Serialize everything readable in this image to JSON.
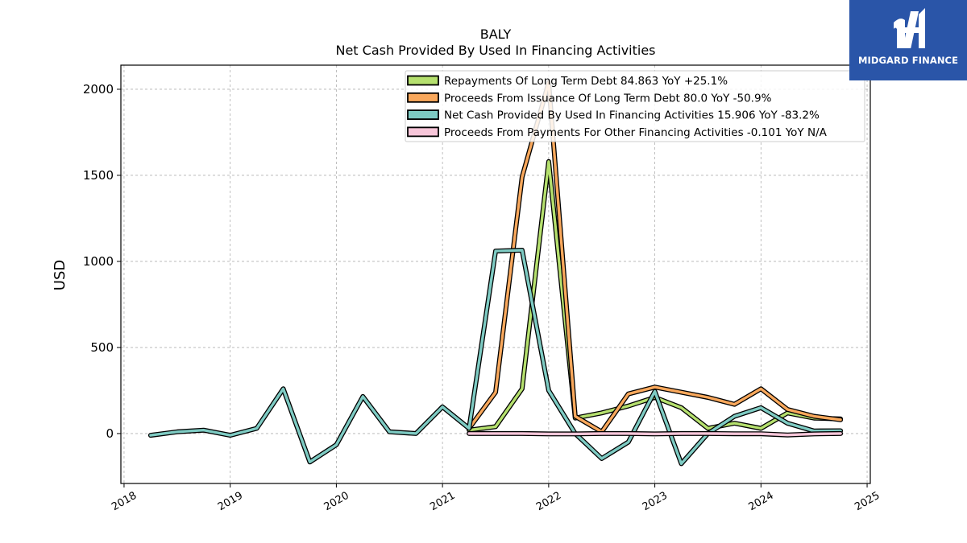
{
  "header": {
    "ticker": "BALY",
    "title": "Net Cash Provided By Used In Financing Activities"
  },
  "brand": {
    "logo_text": "MIDGARD FINANCE",
    "color": "#2a55a8"
  },
  "chart_data": {
    "type": "line",
    "ylabel": "USD",
    "xlabel": "",
    "xlim": [
      2017.97,
      2025.03
    ],
    "ylim": [
      -290,
      2140
    ],
    "xticks": [
      2018,
      2019,
      2020,
      2021,
      2022,
      2023,
      2024,
      2025
    ],
    "xtick_labels": [
      "2018",
      "2019",
      "2020",
      "2021",
      "2022",
      "2023",
      "2024",
      "2025"
    ],
    "yticks": [
      0,
      500,
      1000,
      1500,
      2000
    ],
    "ytick_labels": [
      "0",
      "500",
      "1000",
      "1500",
      "2000"
    ],
    "grid": true,
    "legend_position": "top-right",
    "series": [
      {
        "name": "Repayments Of Long Term Debt",
        "legend_label": "Repayments Of Long Term Debt  84.863 YoY +25.1%",
        "color": "#b5e06e",
        "points": [
          [
            2021.25,
            20
          ],
          [
            2021.5,
            40
          ],
          [
            2021.75,
            260
          ],
          [
            2022.0,
            1580
          ],
          [
            2022.25,
            90
          ],
          [
            2022.5,
            120
          ],
          [
            2022.75,
            160
          ],
          [
            2023.0,
            210
          ],
          [
            2023.25,
            150
          ],
          [
            2023.5,
            30
          ],
          [
            2023.75,
            60
          ],
          [
            2024.0,
            30
          ],
          [
            2024.25,
            120
          ],
          [
            2024.5,
            90
          ],
          [
            2024.75,
            85
          ]
        ]
      },
      {
        "name": "Proceeds From Issuance Of Long Term Debt",
        "legend_label": "Proceeds From Issuance Of Long Term Debt  80.0 YoY -50.9%",
        "color": "#f9a85c",
        "points": [
          [
            2021.25,
            30
          ],
          [
            2021.5,
            240
          ],
          [
            2021.75,
            1490
          ],
          [
            2022.0,
            2040
          ],
          [
            2022.25,
            100
          ],
          [
            2022.5,
            10
          ],
          [
            2022.75,
            230
          ],
          [
            2023.0,
            270
          ],
          [
            2023.25,
            240
          ],
          [
            2023.5,
            210
          ],
          [
            2023.75,
            170
          ],
          [
            2024.0,
            260
          ],
          [
            2024.25,
            140
          ],
          [
            2024.5,
            100
          ],
          [
            2024.75,
            80
          ]
        ]
      },
      {
        "name": "Net Cash Provided By Used In Financing Activities",
        "legend_label": "Net Cash Provided By Used In Financing Activities  15.906 YoY -83.2%",
        "color": "#7ecbc3",
        "points": [
          [
            2018.25,
            -10
          ],
          [
            2018.5,
            10
          ],
          [
            2018.75,
            20
          ],
          [
            2019.0,
            -10
          ],
          [
            2019.25,
            30
          ],
          [
            2019.5,
            260
          ],
          [
            2019.75,
            -165
          ],
          [
            2020.0,
            -65
          ],
          [
            2020.25,
            215
          ],
          [
            2020.5,
            10
          ],
          [
            2020.75,
            0
          ],
          [
            2021.0,
            155
          ],
          [
            2021.25,
            30
          ],
          [
            2021.5,
            1060
          ],
          [
            2021.75,
            1065
          ],
          [
            2022.0,
            250
          ],
          [
            2022.25,
            0
          ],
          [
            2022.5,
            -145
          ],
          [
            2022.75,
            -50
          ],
          [
            2023.0,
            245
          ],
          [
            2023.25,
            -175
          ],
          [
            2023.5,
            0
          ],
          [
            2023.75,
            100
          ],
          [
            2024.0,
            150
          ],
          [
            2024.25,
            60
          ],
          [
            2024.5,
            15
          ],
          [
            2024.75,
            16
          ]
        ]
      },
      {
        "name": "Proceeds From Payments For Other Financing Activities",
        "legend_label": "Proceeds From Payments For Other Financing Activities  -0.101 YoY N/A",
        "color": "#f7c6d9",
        "points": [
          [
            2021.25,
            0
          ],
          [
            2021.5,
            0
          ],
          [
            2021.75,
            0
          ],
          [
            2022.0,
            -2
          ],
          [
            2022.25,
            -2
          ],
          [
            2022.5,
            0
          ],
          [
            2022.75,
            0
          ],
          [
            2023.0,
            -2
          ],
          [
            2023.25,
            0
          ],
          [
            2023.5,
            0
          ],
          [
            2023.75,
            -1
          ],
          [
            2024.0,
            -1
          ],
          [
            2024.25,
            -8
          ],
          [
            2024.5,
            -2
          ],
          [
            2024.75,
            0
          ]
        ]
      }
    ]
  }
}
